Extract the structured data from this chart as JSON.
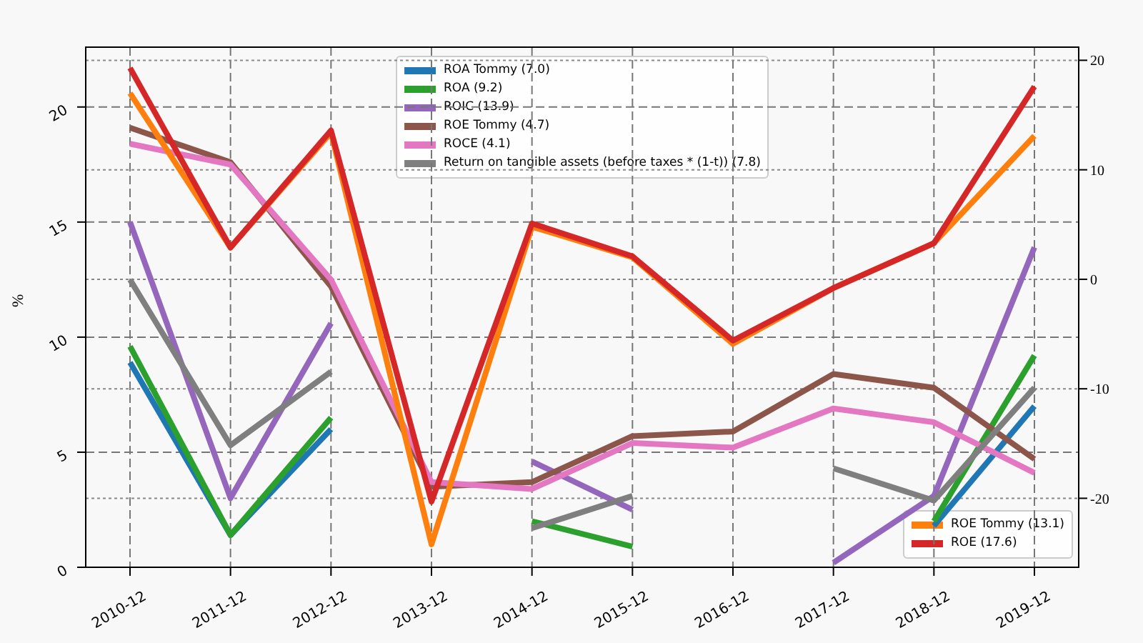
{
  "chart_data": {
    "type": "line",
    "ylabel": "%",
    "categories": [
      "2010-12",
      "2011-12",
      "2012-12",
      "2013-12",
      "2014-12",
      "2015-12",
      "2016-12",
      "2017-12",
      "2018-12",
      "2019-12"
    ],
    "series": [
      {
        "name": "ROA Tommy (7.0)",
        "color": "#1f77b4",
        "values": [
          8.9,
          1.4,
          6.0,
          null,
          null,
          null,
          null,
          null,
          1.8,
          7.0
        ]
      },
      {
        "name": "ROA (9.2)",
        "color": "#2ca02c",
        "values": [
          9.6,
          1.4,
          6.5,
          null,
          2.0,
          0.9,
          null,
          null,
          2.0,
          9.2
        ]
      },
      {
        "name": "ROIC (13.9)",
        "color": "#9467bd",
        "values": [
          15.0,
          3.0,
          10.6,
          null,
          4.6,
          2.5,
          null,
          0.2,
          3.1,
          13.9
        ]
      },
      {
        "name": "ROE Tommy (4.7)",
        "color": "#8c564b",
        "values": [
          19.1,
          17.6,
          12.2,
          3.5,
          3.7,
          5.7,
          5.9,
          8.4,
          7.8,
          4.7
        ]
      },
      {
        "name": "ROCE (4.1)",
        "color": "#e377c2",
        "values": [
          18.4,
          17.5,
          12.5,
          3.7,
          3.4,
          5.4,
          5.2,
          6.9,
          6.3,
          4.1
        ]
      },
      {
        "name": "Return on tangible assets (before taxes * (1-t)) (7.8)",
        "color": "#7f7f7f",
        "values": [
          12.5,
          5.3,
          8.5,
          null,
          1.7,
          3.1,
          null,
          4.3,
          2.9,
          7.8
        ]
      },
      {
        "name": "ROE Tommy (13.1)",
        "color": "#ff7f0e",
        "axis": "y2",
        "values": [
          17.0,
          2.9,
          13.4,
          -24.2,
          4.8,
          2.0,
          -5.9,
          -0.8,
          3.3,
          13.1
        ]
      },
      {
        "name": "ROE (17.6)",
        "color": "#d62728",
        "axis": "y2",
        "values": [
          19.3,
          2.9,
          13.6,
          -20.3,
          5.1,
          2.1,
          -5.6,
          -0.8,
          3.3,
          17.6
        ]
      }
    ],
    "ylim": [
      0,
      22.6
    ],
    "yticks": [
      0,
      5,
      10,
      15,
      20
    ],
    "y2lim": [
      -26.3,
      21.2
    ],
    "y2ticks": [
      -20,
      -10,
      0,
      10,
      20
    ],
    "grid": true,
    "legend": "top",
    "marker": "none",
    "line_style": "solid"
  }
}
